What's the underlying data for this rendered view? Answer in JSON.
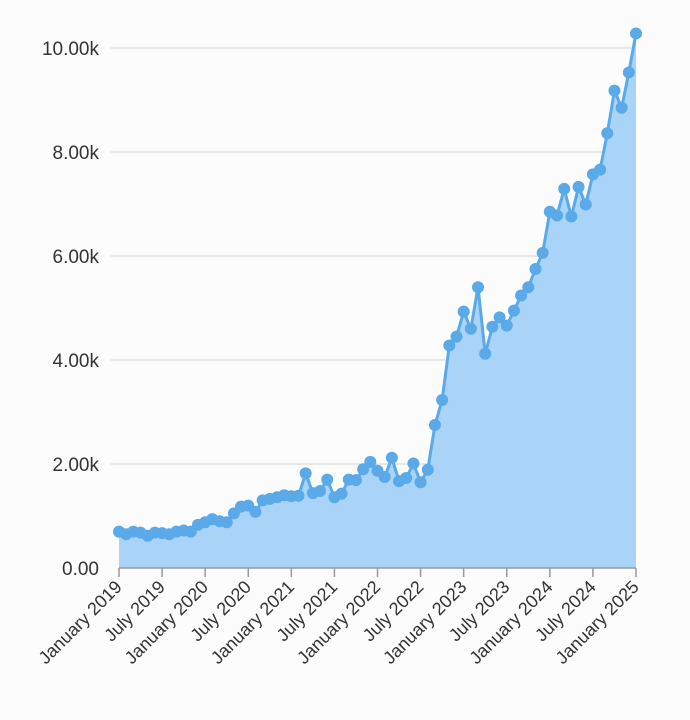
{
  "chart_data": {
    "type": "area",
    "title": "",
    "xlabel": "",
    "ylabel": "",
    "ylim": [
      0,
      10000
    ],
    "grid": true,
    "legend": "none",
    "colors": {
      "line": "#5aaae9",
      "fill": "#a9d3f7",
      "grid": "#e2e2e2",
      "axis": "#9a9a9a"
    },
    "y_ticks": [
      {
        "value": 0,
        "label": "0.00"
      },
      {
        "value": 2000,
        "label": "2.00k"
      },
      {
        "value": 4000,
        "label": "4.00k"
      },
      {
        "value": 6000,
        "label": "6.00k"
      },
      {
        "value": 8000,
        "label": "8.00k"
      },
      {
        "value": 10000,
        "label": "10.00k"
      }
    ],
    "x_ticks": [
      {
        "month": 0,
        "label": "January 2019"
      },
      {
        "month": 6,
        "label": "July 2019"
      },
      {
        "month": 12,
        "label": "January 2020"
      },
      {
        "month": 18,
        "label": "July 2020"
      },
      {
        "month": 24,
        "label": "January 2021"
      },
      {
        "month": 30,
        "label": "July 2021"
      },
      {
        "month": 36,
        "label": "January 2022"
      },
      {
        "month": 42,
        "label": "July 2022"
      },
      {
        "month": 48,
        "label": "January 2023"
      },
      {
        "month": 54,
        "label": "July 2023"
      },
      {
        "month": 60,
        "label": "January 2024"
      },
      {
        "month": 66,
        "label": "July 2024"
      },
      {
        "month": 72,
        "label": "January 2025"
      }
    ],
    "values": [
      700,
      650,
      700,
      680,
      620,
      680,
      670,
      650,
      700,
      720,
      700,
      830,
      880,
      940,
      900,
      880,
      1050,
      1180,
      1200,
      1080,
      1300,
      1330,
      1360,
      1400,
      1380,
      1390,
      1820,
      1440,
      1480,
      1700,
      1360,
      1430,
      1700,
      1690,
      1900,
      2040,
      1870,
      1750,
      2120,
      1670,
      1730,
      2010,
      1650,
      1890,
      2750,
      3230,
      4280,
      4450,
      4930,
      4600,
      5400,
      4120,
      4640,
      4820,
      4660,
      4950,
      5240,
      5400,
      5750,
      6060,
      6850,
      6780,
      7290,
      6760,
      7330,
      6990,
      7570,
      7660,
      8360,
      9180,
      8850,
      9530,
      10280
    ]
  }
}
